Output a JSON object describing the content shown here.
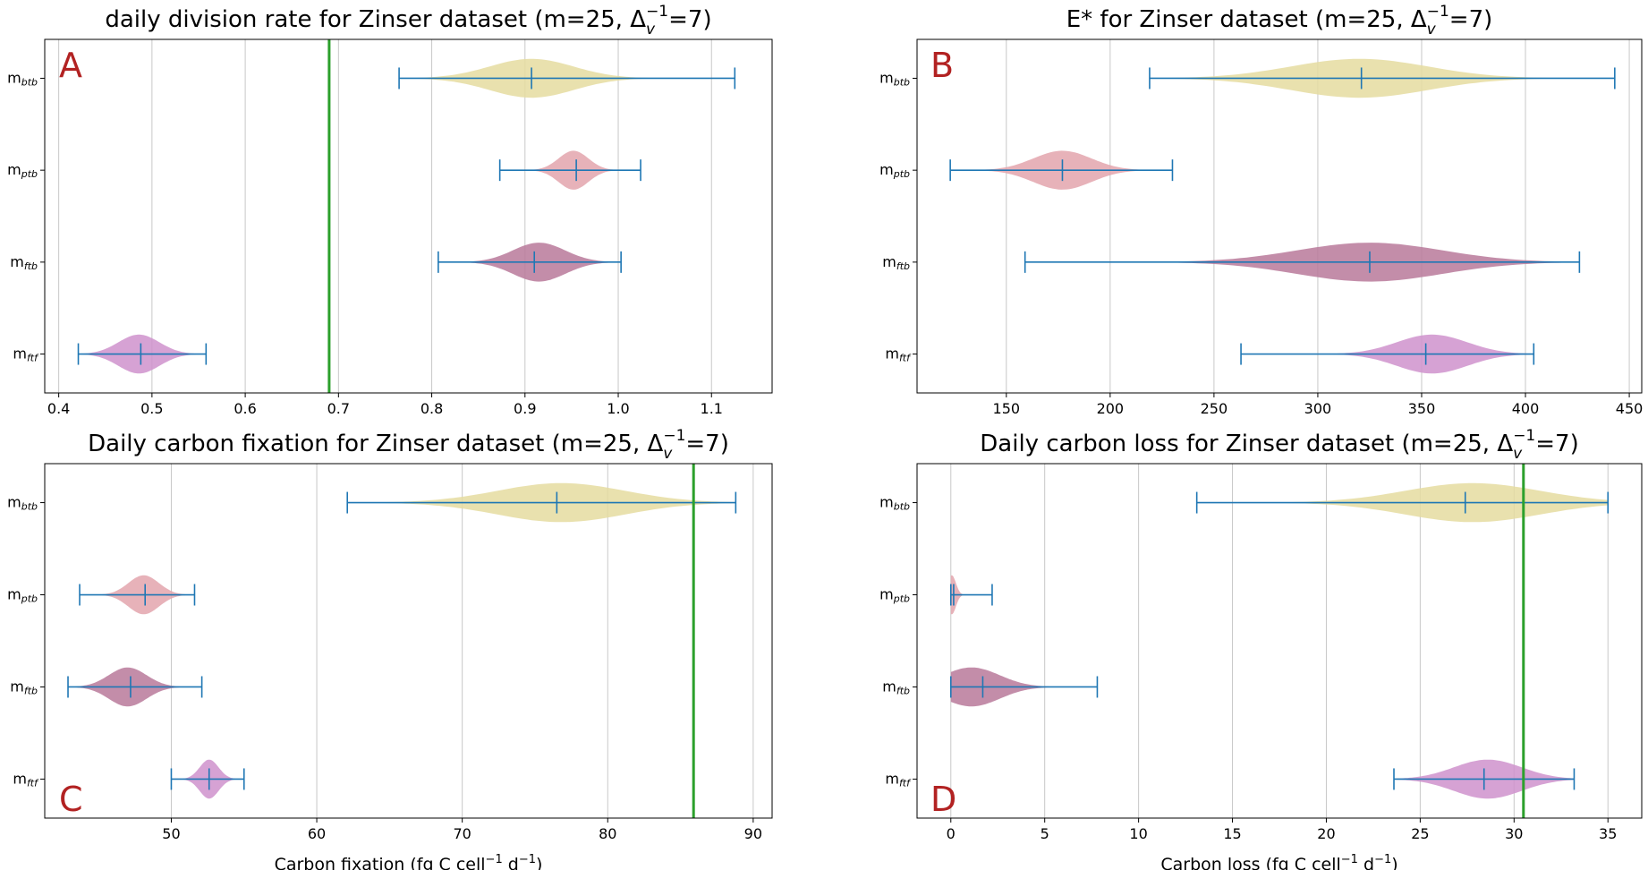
{
  "chart_data": [
    {
      "panel": "A",
      "type": "violin",
      "title": "daily division rate for Zinser dataset (m=25, Δ_v^{-1}=7)",
      "title_parts": [
        "daily division rate for Zinser dataset (m=25, Δ",
        "v",
        "−1",
        "=7)"
      ],
      "xlabel": "",
      "xlim": [
        0.385,
        1.165
      ],
      "xticks": [
        0.4,
        0.5,
        0.6,
        0.7,
        0.8,
        0.9,
        1.0,
        1.1
      ],
      "xtick_labels": [
        "0.4",
        "0.5",
        "0.6",
        "0.7",
        "0.8",
        "0.9",
        "1.0",
        "1.1"
      ],
      "grid": "vertical",
      "reference_line": 0.69,
      "reference_color": "#2ca02c",
      "series": [
        {
          "label": "m",
          "sub": "btb",
          "min": 0.765,
          "mean": 0.907,
          "max": 1.125,
          "peak": 0.907,
          "spread": 0.045,
          "color": "#e5dca0"
        },
        {
          "label": "m",
          "sub": "ptb",
          "min": 0.873,
          "mean": 0.955,
          "max": 1.024,
          "peak": 0.952,
          "spread": 0.016,
          "color": "#e3a4ad"
        },
        {
          "label": "m",
          "sub": "ftb",
          "min": 0.807,
          "mean": 0.91,
          "max": 1.003,
          "peak": 0.915,
          "spread": 0.028,
          "color": "#b9799a"
        },
        {
          "label": "m",
          "sub": "ftf",
          "min": 0.421,
          "mean": 0.488,
          "max": 0.558,
          "peak": 0.486,
          "spread": 0.022,
          "color": "#cf92cc"
        }
      ]
    },
    {
      "panel": "B",
      "type": "violin",
      "title": "E* for Zinser dataset (m=25, Δ_v^{-1}=7)",
      "title_parts": [
        "E* for Zinser dataset (m=25, Δ",
        "v",
        "−1",
        "=7)"
      ],
      "xlabel": "",
      "xlim": [
        107,
        456
      ],
      "xticks": [
        150,
        200,
        250,
        300,
        350,
        400,
        450
      ],
      "xtick_labels": [
        "150",
        "200",
        "250",
        "300",
        "350",
        "400",
        "450"
      ],
      "grid": "vertical",
      "reference_line": null,
      "series": [
        {
          "label": "m",
          "sub": "btb",
          "min": 219,
          "mean": 321,
          "max": 443,
          "peak": 320,
          "spread": 33,
          "color": "#e5dca0"
        },
        {
          "label": "m",
          "sub": "ptb",
          "min": 123,
          "mean": 177,
          "max": 230,
          "peak": 177,
          "spread": 14,
          "color": "#e3a4ad"
        },
        {
          "label": "m",
          "sub": "ftb",
          "min": 159,
          "mean": 325,
          "max": 426,
          "peak": 325,
          "spread": 35,
          "color": "#b9799a"
        },
        {
          "label": "m",
          "sub": "ftf",
          "min": 263,
          "mean": 352,
          "max": 404,
          "peak": 355,
          "spread": 17,
          "color": "#cf92cc"
        }
      ]
    },
    {
      "panel": "C",
      "type": "violin",
      "title": "Daily carbon fixation for Zinser dataset (m=25, Δ_v^{-1}=7)",
      "title_parts": [
        "Daily carbon fixation for Zinser dataset (m=25, Δ",
        "v",
        "−1",
        "=7)"
      ],
      "xlabel": "Carbon fixation (fg C cell⁻¹ d⁻¹)",
      "xlabel_parts": [
        "Carbon fixation (fg C cell",
        "−1",
        " d",
        "−1",
        ")"
      ],
      "xlim": [
        41.3,
        91.3
      ],
      "xticks": [
        50,
        60,
        70,
        80,
        90
      ],
      "xtick_labels": [
        "50",
        "60",
        "70",
        "80",
        "90"
      ],
      "grid": "vertical",
      "reference_line": 85.9,
      "reference_color": "#2ca02c",
      "series": [
        {
          "label": "m",
          "sub": "btb",
          "min": 62.1,
          "mean": 76.5,
          "max": 88.8,
          "peak": 76.8,
          "spread": 4.4,
          "color": "#e5dca0"
        },
        {
          "label": "m",
          "sub": "ptb",
          "min": 43.7,
          "mean": 48.2,
          "max": 51.6,
          "peak": 48.1,
          "spread": 1.05,
          "color": "#e3a4ad"
        },
        {
          "label": "m",
          "sub": "ftb",
          "min": 42.9,
          "mean": 47.2,
          "max": 52.1,
          "peak": 47.0,
          "spread": 1.3,
          "color": "#b9799a"
        },
        {
          "label": "m",
          "sub": "ftf",
          "min": 50.0,
          "mean": 52.6,
          "max": 55.0,
          "peak": 52.6,
          "spread": 0.65,
          "color": "#cf92cc"
        }
      ]
    },
    {
      "panel": "D",
      "type": "violin",
      "title": "Daily carbon loss for Zinser dataset (m=25, Δ_v^{-1}=7)",
      "title_parts": [
        "Daily carbon loss for Zinser dataset (m=25, Δ",
        "v",
        "−1",
        "=7)"
      ],
      "xlabel": "Carbon loss (fg C cell⁻¹ d⁻¹)",
      "xlabel_parts": [
        "Carbon loss (fg C cell",
        "−1",
        " d",
        "−1",
        ")"
      ],
      "xlim": [
        -1.8,
        36.8
      ],
      "xticks": [
        0,
        5,
        10,
        15,
        20,
        25,
        30,
        35
      ],
      "xtick_labels": [
        "0",
        "5",
        "10",
        "15",
        "20",
        "25",
        "30",
        "35"
      ],
      "grid": "vertical",
      "reference_line": 30.5,
      "reference_color": "#2ca02c",
      "series": [
        {
          "label": "m",
          "sub": "btb",
          "min": 13.1,
          "mean": 27.4,
          "max": 35.0,
          "peak": 27.8,
          "spread": 3.6,
          "color": "#e5dca0"
        },
        {
          "label": "m",
          "sub": "ptb",
          "min": 0.0,
          "mean": 0.15,
          "max": 2.2,
          "peak": 0.05,
          "spread": 0.22,
          "color": "#e3a4ad"
        },
        {
          "label": "m",
          "sub": "ftb",
          "min": 0.0,
          "mean": 1.7,
          "max": 7.8,
          "peak": 1.1,
          "spread": 1.5,
          "color": "#b9799a"
        },
        {
          "label": "m",
          "sub": "ftf",
          "min": 23.6,
          "mean": 28.4,
          "max": 33.2,
          "peak": 28.6,
          "spread": 1.8,
          "color": "#cf92cc"
        }
      ]
    }
  ],
  "errorbar_color": "#1f77b4"
}
